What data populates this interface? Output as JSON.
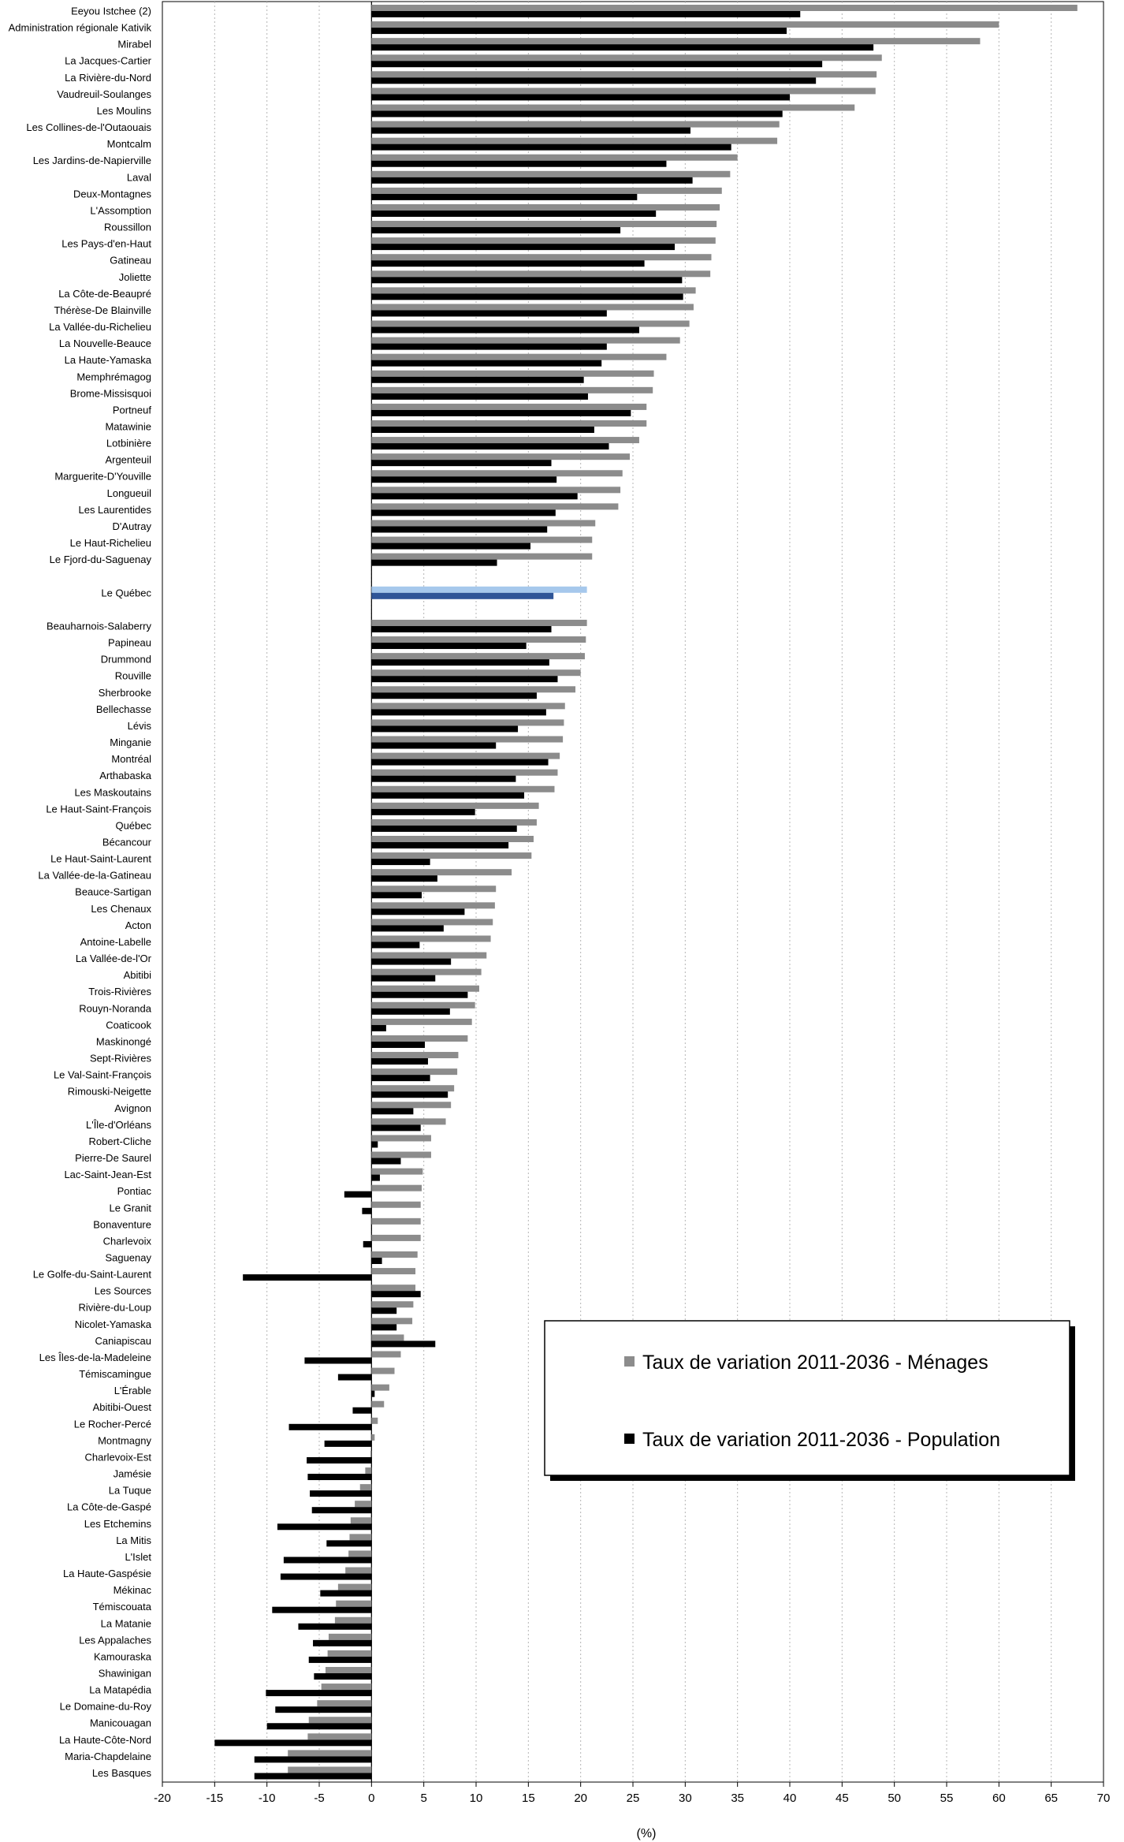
{
  "chart_data": {
    "type": "bar",
    "orientation": "horizontal",
    "xlabel": "(%)",
    "xlim": [
      -20,
      70
    ],
    "xticks": [
      -20,
      -15,
      -10,
      -5,
      0,
      5,
      10,
      15,
      20,
      25,
      30,
      35,
      40,
      45,
      50,
      55,
      60,
      65,
      70
    ],
    "grid": "vertical dotted",
    "legend_position": "bottom-right",
    "colors": {
      "menages": "#8c8c8c",
      "population": "#000000",
      "quebec_menages": "#a6c8ec",
      "quebec_population": "#2f5597"
    },
    "series": [
      {
        "name": "Taux de variation 2011-2036 - Ménages",
        "key": "menages"
      },
      {
        "name": "Taux de variation 2011-2036 - Population",
        "key": "population"
      }
    ],
    "highlight": "Le Québec",
    "groups": [
      {
        "categories": [
          "Eeyou Istchee (2)",
          "Administration régionale Kativik",
          "Mirabel",
          "La Jacques-Cartier",
          "La Rivière-du-Nord",
          "Vaudreuil-Soulanges",
          "Les Moulins",
          "Les Collines-de-l'Outaouais",
          "Montcalm",
          "Les Jardins-de-Napierville",
          "Laval",
          "Deux-Montagnes",
          "L'Assomption",
          "Roussillon",
          "Les Pays-d'en-Haut",
          "Gatineau",
          "Joliette",
          "La Côte-de-Beaupré",
          "Thérèse-De Blainville",
          "La Vallée-du-Richelieu",
          "La Nouvelle-Beauce",
          "La Haute-Yamaska",
          "Memphrémagog",
          "Brome-Missisquoi",
          "Portneuf",
          "Matawinie",
          "Lotbinière",
          "Argenteuil",
          "Marguerite-D'Youville",
          "Longueuil",
          "Les Laurentides",
          "D'Autray",
          "Le Haut-Richelieu",
          "Le Fjord-du-Saguenay"
        ],
        "menages": [
          67.5,
          60,
          58.2,
          48.8,
          48.3,
          48.2,
          46.2,
          39.0,
          38.8,
          35.0,
          34.3,
          33.5,
          33.3,
          33.0,
          32.9,
          32.5,
          32.4,
          31.0,
          30.8,
          30.4,
          29.5,
          28.2,
          27.0,
          26.9,
          26.3,
          26.3,
          25.6,
          24.7,
          24.0,
          23.8,
          23.6,
          21.4,
          21.1,
          21.1
        ],
        "population": [
          41.0,
          39.7,
          48.0,
          43.1,
          42.5,
          40.0,
          39.3,
          30.5,
          34.4,
          28.2,
          30.7,
          25.4,
          27.2,
          23.8,
          29.0,
          26.1,
          29.7,
          29.8,
          22.5,
          25.6,
          22.5,
          22.0,
          20.3,
          20.7,
          24.8,
          21.3,
          22.7,
          17.2,
          17.7,
          19.7,
          17.6,
          16.8,
          15.2,
          12.0
        ]
      },
      {
        "categories": [
          "Le Québec"
        ],
        "menages": [
          20.6
        ],
        "population": [
          17.4
        ]
      },
      {
        "categories": [
          "Beauharnois-Salaberry",
          "Papineau",
          "Drummond",
          "Rouville",
          "Sherbrooke",
          "Bellechasse",
          "Lévis",
          "Minganie",
          "Montréal",
          "Arthabaska",
          "Les Maskoutains",
          "Le Haut-Saint-François",
          "Québec",
          "Bécancour",
          "Le Haut-Saint-Laurent",
          "La Vallée-de-la-Gatineau",
          "Beauce-Sartigan",
          "Les Chenaux",
          "Acton",
          "Antoine-Labelle",
          "La Vallée-de-l'Or",
          "Abitibi",
          "Trois-Rivières",
          "Rouyn-Noranda",
          "Coaticook",
          "Maskinongé",
          "Sept-Rivières",
          "Le Val-Saint-François",
          "Rimouski-Neigette",
          "Avignon",
          "L'Île-d'Orléans",
          "Robert-Cliche",
          "Pierre-De Saurel",
          "Lac-Saint-Jean-Est",
          "Pontiac",
          "Le Granit",
          "Bonaventure",
          "Charlevoix",
          "Saguenay",
          "Le Golfe-du-Saint-Laurent",
          "Les Sources",
          "Rivière-du-Loup",
          "Nicolet-Yamaska",
          "Caniapiscau",
          "Les Îles-de-la-Madeleine",
          "Témiscamingue",
          "L'Érable",
          "Abitibi-Ouest",
          "Le Rocher-Percé",
          "Montmagny",
          "Charlevoix-Est",
          "Jamésie",
          "La Tuque",
          "La Côte-de-Gaspé",
          "Les Etchemins",
          "La Mitis",
          "L'Islet",
          "La Haute-Gaspésie",
          "Mékinac",
          "Témiscouata",
          "La Matanie",
          "Les Appalaches",
          "Kamouraska",
          "Shawinigan",
          "La Matapédia",
          "Le Domaine-du-Roy",
          "Manicouagan",
          "La Haute-Côte-Nord",
          "Maria-Chapdelaine",
          "Les Basques"
        ],
        "menages": [
          20.6,
          20.5,
          20.4,
          20.0,
          19.5,
          18.5,
          18.4,
          18.3,
          18.0,
          17.8,
          17.5,
          16.0,
          15.8,
          15.5,
          15.3,
          13.4,
          11.9,
          11.8,
          11.6,
          11.4,
          11.0,
          10.5,
          10.3,
          9.9,
          9.6,
          9.2,
          8.3,
          8.2,
          7.9,
          7.6,
          7.1,
          5.7,
          5.7,
          4.9,
          4.8,
          4.7,
          4.7,
          4.7,
          4.4,
          4.2,
          4.2,
          4.0,
          3.9,
          3.1,
          2.8,
          2.2,
          1.7,
          1.2,
          0.6,
          0.3,
          -0.1,
          -0.6,
          -1.1,
          -1.6,
          -2.0,
          -2.1,
          -2.2,
          -2.5,
          -3.2,
          -3.4,
          -3.5,
          -4.1,
          -4.2,
          -4.4,
          -4.8,
          -5.2,
          -6.0,
          -6.1,
          -8.0,
          -8.0
        ],
        "population": [
          17.2,
          14.8,
          17.0,
          17.8,
          15.8,
          16.7,
          14.0,
          11.9,
          16.9,
          13.8,
          14.6,
          9.9,
          13.9,
          13.1,
          5.6,
          6.3,
          4.8,
          8.9,
          6.9,
          4.6,
          7.6,
          6.1,
          9.2,
          7.5,
          1.4,
          5.1,
          5.4,
          5.6,
          7.3,
          4.0,
          4.7,
          0.6,
          2.8,
          0.8,
          -2.6,
          -0.9,
          0,
          -0.8,
          1.0,
          -12.3,
          4.7,
          2.4,
          2.4,
          6.1,
          -6.4,
          -3.2,
          0.3,
          -1.8,
          -7.9,
          -4.5,
          -6.2,
          -6.1,
          -5.9,
          -5.7,
          -9.0,
          -4.3,
          -8.4,
          -8.7,
          -4.9,
          -9.5,
          -7.0,
          -5.6,
          -6.0,
          -5.5,
          -10.1,
          -9.2,
          -10.0,
          -15.0,
          -11.2,
          -11.2
        ]
      }
    ]
  }
}
